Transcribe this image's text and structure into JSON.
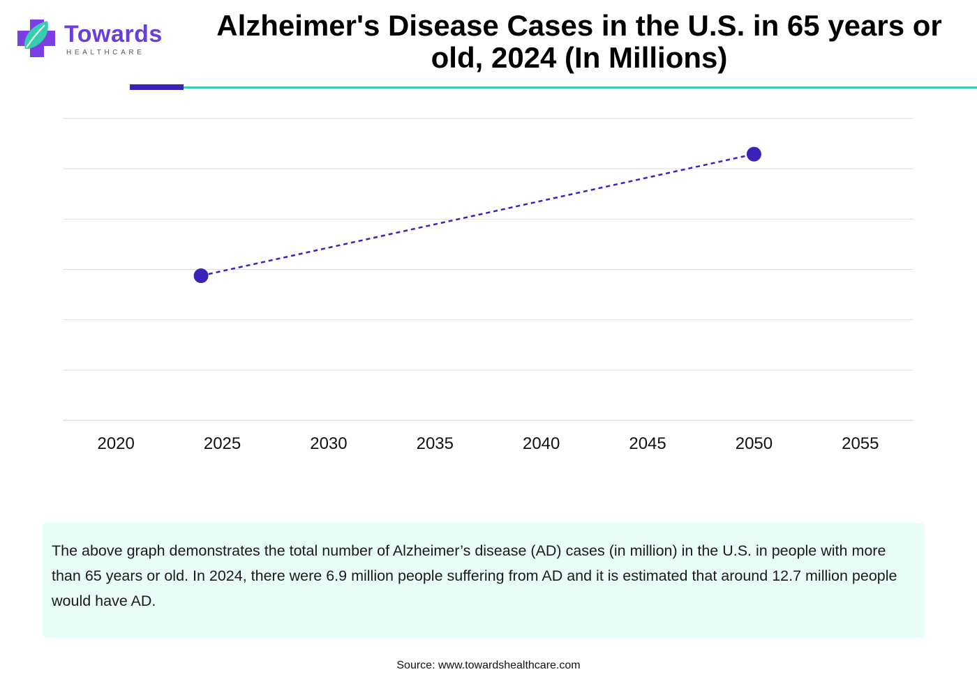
{
  "brand": {
    "name": "Towards",
    "tagline": "HEALTHCARE",
    "colors": {
      "primary": "#6a3fd8",
      "accent": "#3b22b8",
      "teal": "#35cfae"
    },
    "icon": "medical-cross-leaf-icon"
  },
  "header": {
    "title": "Alzheimer's Disease Cases in the U.S. in 65 years or old, 2024 (In Millions)"
  },
  "chart_data": {
    "type": "line",
    "title": "Alzheimer's Disease Cases in the U.S. in 65 years or old, 2024 (In Millions)",
    "xlabel": "",
    "ylabel": "",
    "x": [
      2024,
      2050
    ],
    "series": [
      {
        "values": [
          6.9,
          12.7
        ],
        "color": "#3b22b8",
        "line_style": "dashed"
      }
    ],
    "x_ticks": [
      2020,
      2025,
      2030,
      2035,
      2040,
      2045,
      2050,
      2055
    ],
    "xlim": [
      2017.5,
      2057.5
    ],
    "ylim": [
      0,
      14.4
    ],
    "y_gridlines": [
      0,
      2.4,
      4.8,
      7.2,
      9.6,
      12,
      14.4
    ],
    "grid": true,
    "legend": "none"
  },
  "description": "The above graph demonstrates the total number of Alzheimer’s disease (AD) cases (in million) in the U.S. in people with more than 65 years or old. In 2024, there were 6.9 million people suffering from AD and it is estimated that around 12.7 million people would have AD.",
  "footer": {
    "source": "Source: www.towardshealthcare.com"
  }
}
